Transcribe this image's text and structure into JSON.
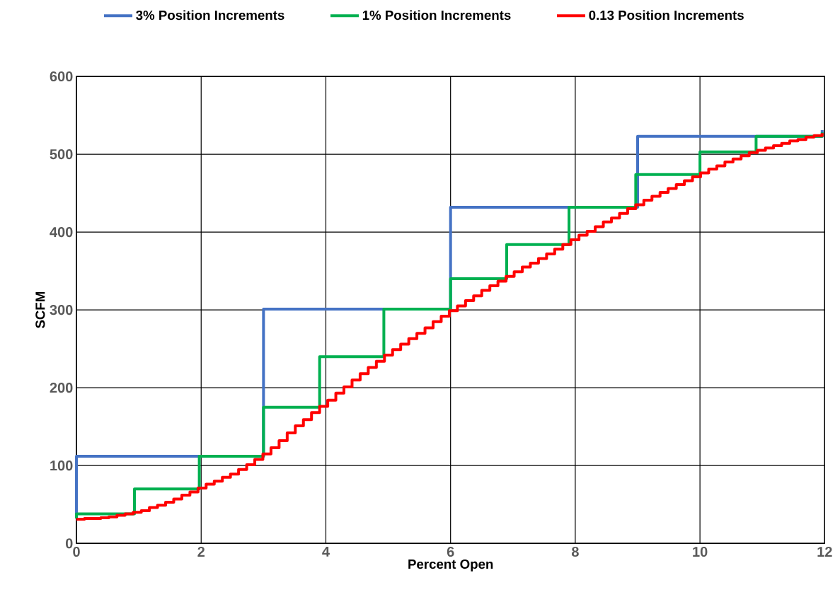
{
  "chart_data": {
    "type": "step",
    "xlabel": "Percent Open",
    "ylabel": "SCFM",
    "xlim": [
      0,
      12
    ],
    "xticks": [
      0,
      2,
      4,
      6,
      8,
      10,
      12
    ],
    "ylim": [
      0,
      600
    ],
    "yticks": [
      0,
      100,
      200,
      300,
      400,
      500,
      600
    ],
    "grid": true,
    "legend": "top",
    "marker": "none",
    "line_style": "solid",
    "series": [
      {
        "name": "3% Position Increments",
        "color": "#4472c4",
        "x": [
          0,
          0,
          3,
          6,
          9,
          11.96
        ],
        "values": [
          32,
          112,
          301,
          432,
          523,
          531
        ]
      },
      {
        "name": "1% Position Increments",
        "color": "#00b050",
        "x": [
          0,
          0,
          0.93,
          1.97,
          3,
          3.9,
          4.93,
          6,
          6.9,
          7.9,
          8.97,
          10,
          10.9,
          11.96
        ],
        "values": [
          32,
          38,
          70,
          112,
          175,
          240,
          301,
          340,
          384,
          432,
          474,
          503,
          523,
          528
        ]
      },
      {
        "name": "0.13 Position Increments",
        "color": "#ff0000",
        "x": [
          0,
          0.13,
          0.26,
          0.39,
          0.52,
          0.65,
          0.78,
          0.91,
          1.04,
          1.17,
          1.3,
          1.43,
          1.56,
          1.69,
          1.82,
          1.95,
          2.08,
          2.21,
          2.34,
          2.47,
          2.6,
          2.73,
          2.86,
          2.99,
          3.12,
          3.25,
          3.38,
          3.51,
          3.64,
          3.77,
          3.9,
          4.03,
          4.16,
          4.29,
          4.42,
          4.55,
          4.68,
          4.81,
          4.94,
          5.07,
          5.2,
          5.33,
          5.46,
          5.59,
          5.72,
          5.85,
          5.98,
          6.11,
          6.24,
          6.37,
          6.5,
          6.63,
          6.76,
          6.89,
          7.02,
          7.15,
          7.28,
          7.41,
          7.54,
          7.67,
          7.8,
          7.93,
          8.06,
          8.19,
          8.32,
          8.45,
          8.58,
          8.71,
          8.84,
          8.97,
          9.1,
          9.23,
          9.36,
          9.49,
          9.62,
          9.75,
          9.88,
          10.01,
          10.14,
          10.27,
          10.4,
          10.53,
          10.66,
          10.79,
          10.92,
          11.05,
          11.18,
          11.31,
          11.44,
          11.57,
          11.7,
          11.83,
          11.96
        ],
        "values": [
          31,
          32,
          32,
          33,
          34,
          36,
          38,
          40,
          42,
          46,
          49,
          53,
          57,
          62,
          66,
          71,
          76,
          80,
          85,
          89,
          95,
          101,
          108,
          115,
          123,
          132,
          142,
          151,
          159,
          168,
          176,
          184,
          193,
          201,
          210,
          218,
          226,
          234,
          242,
          249,
          256,
          263,
          270,
          277,
          285,
          292,
          299,
          305,
          312,
          318,
          325,
          331,
          337,
          343,
          349,
          355,
          360,
          366,
          372,
          378,
          384,
          390,
          396,
          401,
          407,
          413,
          418,
          424,
          430,
          435,
          441,
          446,
          451,
          456,
          461,
          466,
          471,
          476,
          481,
          485,
          490,
          494,
          498,
          502,
          505,
          508,
          511,
          514,
          517,
          519,
          522,
          524,
          527
        ]
      }
    ]
  }
}
